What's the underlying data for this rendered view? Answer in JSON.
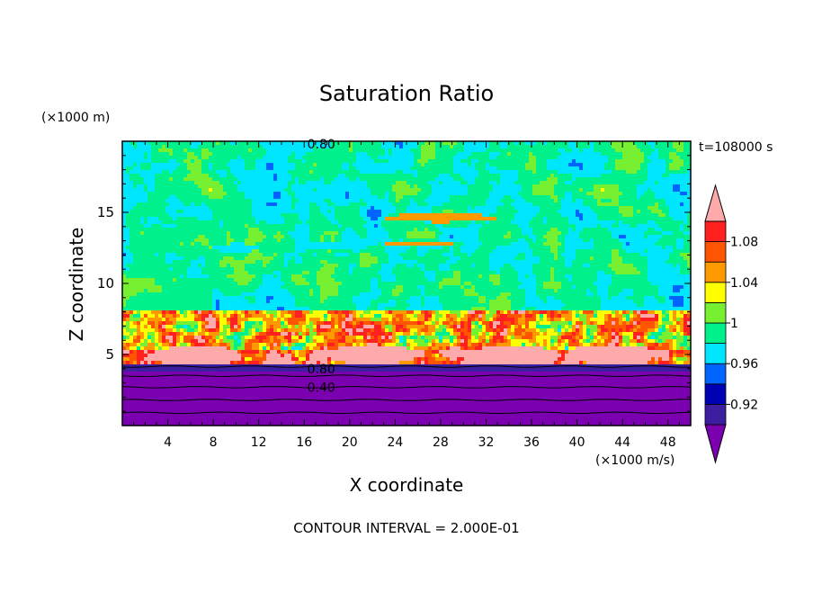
{
  "chart_data": {
    "type": "heatmap",
    "title": "Saturation Ratio",
    "xlabel": "X coordinate",
    "ylabel": "Z coordinate",
    "x_unit": "(×1000 m/s)",
    "y_unit": "(×1000 m)",
    "time_label": "t=108000 s",
    "footer": "CONTOUR INTERVAL = 2.000E-01",
    "xlim": [
      0,
      50
    ],
    "ylim": [
      0,
      20
    ],
    "x_ticks": [
      4,
      8,
      12,
      16,
      20,
      24,
      28,
      32,
      36,
      40,
      44,
      48
    ],
    "y_ticks": [
      5,
      10,
      15
    ],
    "contour_labels": [
      {
        "text": "0.80",
        "x": 17.5,
        "y": 19.8
      },
      {
        "text": "0.80",
        "x": 17.5,
        "y": 4.0
      },
      {
        "text": "0.40",
        "x": 17.5,
        "y": 2.7
      }
    ],
    "colorbar": {
      "labels": [
        "0.92",
        "0.96",
        "1",
        "1.04",
        "1.08"
      ],
      "bins": [
        {
          "max": 0.9,
          "color": "#7a00b0"
        },
        {
          "max": 0.92,
          "color": "#3c1ea0"
        },
        {
          "max": 0.94,
          "color": "#0000b4"
        },
        {
          "max": 0.96,
          "color": "#0064ff"
        },
        {
          "max": 0.98,
          "color": "#00e6ff"
        },
        {
          "max": 1.0,
          "color": "#00f08c"
        },
        {
          "max": 1.02,
          "color": "#78f032"
        },
        {
          "max": 1.04,
          "color": "#ffff00"
        },
        {
          "max": 1.06,
          "color": "#ff9900"
        },
        {
          "max": 1.08,
          "color": "#ff5500"
        },
        {
          "max": 1.1,
          "color": "#ff2020"
        },
        {
          "max": 9.99,
          "color": "#ffaaaa"
        }
      ]
    }
  }
}
